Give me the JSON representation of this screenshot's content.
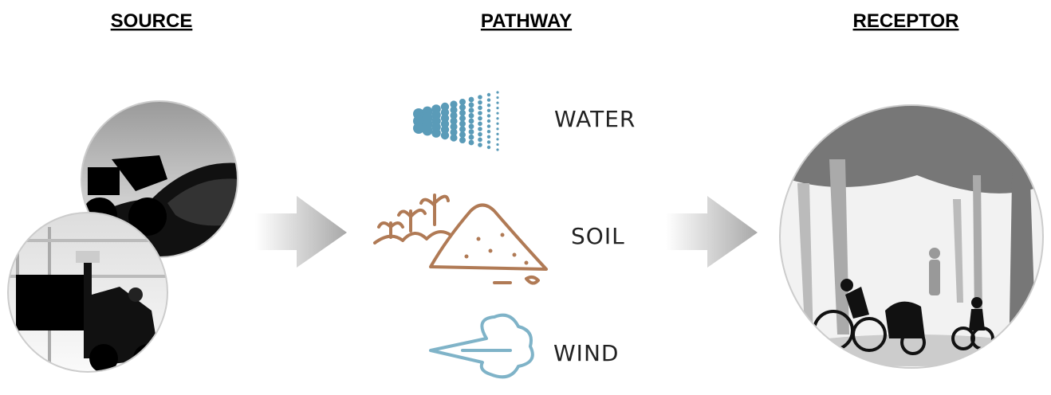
{
  "headers": {
    "source": "SOURCE",
    "pathway": "PATHWAY",
    "receptor": "RECEPTOR"
  },
  "pathways": [
    {
      "label": "WATER"
    },
    {
      "label": "SOIL"
    },
    {
      "label": "WIND"
    }
  ]
}
